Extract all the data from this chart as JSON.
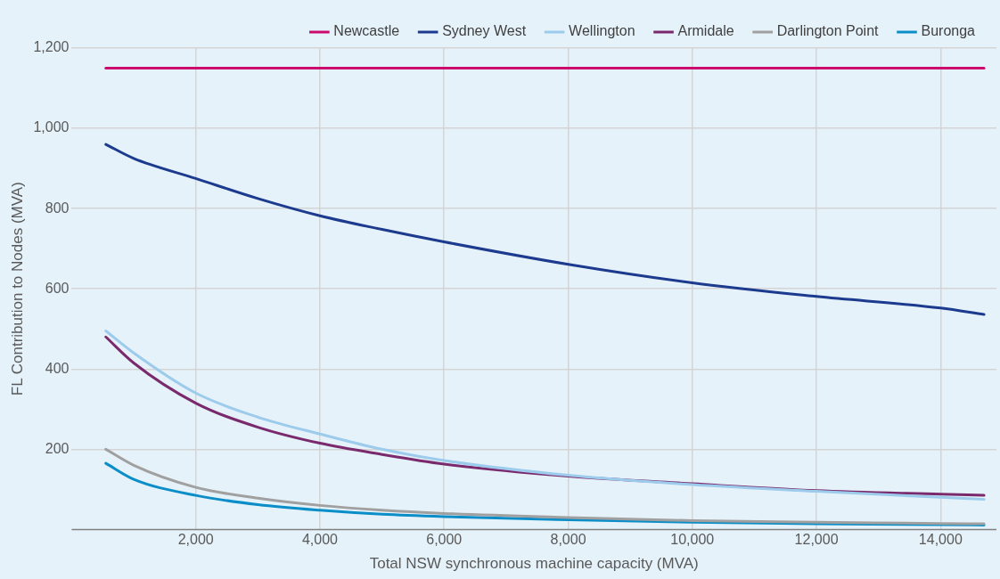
{
  "chart_data": {
    "type": "line",
    "xlabel": "Total NSW synchronous machine capacity (MVA)",
    "ylabel": "FL Contribution to Nodes (MVA)",
    "x": [
      550,
      1000,
      2000,
      3000,
      4000,
      5000,
      6000,
      8000,
      10000,
      12000,
      14000,
      14700
    ],
    "series": [
      {
        "name": "Newcastle",
        "color": "#cc0a6e",
        "values": [
          1150,
          1150,
          1150,
          1150,
          1150,
          1150,
          1150,
          1150,
          1150,
          1150,
          1150,
          1150
        ]
      },
      {
        "name": "Sydney West",
        "color": "#1c3a8e",
        "values": [
          960,
          925,
          875,
          825,
          782,
          748,
          717,
          661,
          615,
          581,
          552,
          536
        ]
      },
      {
        "name": "Wellington",
        "color": "#9ccbec",
        "values": [
          495,
          440,
          340,
          280,
          238,
          200,
          172,
          135,
          112,
          95,
          80,
          75
        ]
      },
      {
        "name": "Armidale",
        "color": "#7a2a6c",
        "values": [
          480,
          415,
          315,
          255,
          215,
          187,
          163,
          133,
          114,
          97,
          88,
          85
        ]
      },
      {
        "name": "Darlington Point",
        "color": "#a0a0a0",
        "values": [
          200,
          160,
          105,
          78,
          60,
          48,
          40,
          30,
          22,
          18,
          15,
          14
        ]
      },
      {
        "name": "Buronga",
        "color": "#0b8ec8",
        "values": [
          165,
          125,
          85,
          62,
          48,
          38,
          32,
          24,
          18,
          14,
          12,
          11
        ]
      }
    ],
    "xlim": [
      0,
      14900
    ],
    "ylim": [
      0,
      1200
    ],
    "xticks": [
      {
        "value": 2000,
        "label": "2,000"
      },
      {
        "value": 4000,
        "label": "4,000"
      },
      {
        "value": 6000,
        "label": "6,000"
      },
      {
        "value": 8000,
        "label": "8,000"
      },
      {
        "value": 10000,
        "label": "10,000"
      },
      {
        "value": 12000,
        "label": "12,000"
      },
      {
        "value": 14000,
        "label": "14,000"
      }
    ],
    "yticks": [
      {
        "value": 200,
        "label": "200"
      },
      {
        "value": 400,
        "label": "400"
      },
      {
        "value": 600,
        "label": "600"
      },
      {
        "value": 800,
        "label": "800"
      },
      {
        "value": 1000,
        "label": "1,000"
      },
      {
        "value": 1200,
        "label": "1,200"
      }
    ],
    "grid": true,
    "legend": "top",
    "marker": "none",
    "line_style": "solid"
  }
}
